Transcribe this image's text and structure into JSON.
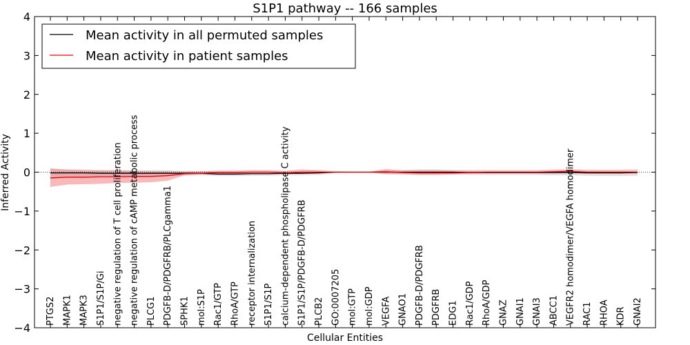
{
  "chart_data": {
    "type": "line",
    "title": "S1P1 pathway -- 166 samples",
    "xlabel": "Cellular Entities",
    "ylabel": "Inferred Activity",
    "ylim": [
      -4,
      4
    ],
    "yticks": [
      -4,
      -3,
      -2,
      -1,
      0,
      1,
      2,
      3,
      4
    ],
    "ytick_labels": [
      "−4",
      "−3",
      "−2",
      "−1",
      "0",
      "1",
      "2",
      "3",
      "4"
    ],
    "categories": [
      "PTGS2",
      "MAPK1",
      "MAPK3",
      "S1P1/S1P/Gi",
      "negative regulation of T cell proliferation",
      "negative regulation of cAMP metabolic process",
      "PLCG1",
      "PDGFB-D/PDGFRB/PLCgamma1",
      "SPHK1",
      "mol:S1P",
      "Rac1/GTP",
      "RhoA/GTP",
      "receptor internalization",
      "S1P1/S1P",
      "calcium-dependent phospholipase C activity",
      "S1P1/S1P/PDGFB-D/PDGFRB",
      "PLCB2",
      "GO:0007205",
      "mol:GTP",
      "mol:GDP",
      "VEGFA",
      "GNAO1",
      "PDGFB-D/PDGFRB",
      "PDGFRB",
      "EDG1",
      "Rac1/GDP",
      "RhoA/GDP",
      "GNAZ",
      "GNAI1",
      "GNAI3",
      "ABCC1",
      "VEGFR2 homodimer/VEGFA homodimer",
      "RAC1",
      "RHOA",
      "KDR",
      "GNAI2"
    ],
    "legend_position": "top-left",
    "series": [
      {
        "name": "Mean activity in all permuted samples",
        "color": "#000000",
        "values": [
          -0.02,
          -0.02,
          -0.02,
          -0.03,
          -0.03,
          -0.03,
          -0.03,
          -0.03,
          -0.03,
          -0.03,
          -0.05,
          -0.05,
          -0.04,
          -0.04,
          -0.03,
          -0.03,
          -0.02,
          0.0,
          0.0,
          0.0,
          0.0,
          0.0,
          0.0,
          0.0,
          0.0,
          -0.01,
          -0.01,
          -0.01,
          -0.01,
          -0.01,
          -0.01,
          -0.01,
          -0.02,
          -0.02,
          -0.02,
          -0.01
        ],
        "band_lower": [
          -0.15,
          -0.14,
          -0.13,
          -0.13,
          -0.12,
          -0.12,
          -0.11,
          -0.1,
          -0.09,
          -0.08,
          -0.1,
          -0.1,
          -0.09,
          -0.09,
          -0.08,
          -0.08,
          -0.07,
          -0.02,
          -0.01,
          -0.01,
          -0.05,
          -0.06,
          -0.07,
          -0.07,
          -0.06,
          -0.07,
          -0.07,
          -0.07,
          -0.07,
          -0.07,
          -0.08,
          -0.08,
          -0.09,
          -0.1,
          -0.1,
          -0.09
        ],
        "band_upper": [
          0.08,
          0.08,
          0.07,
          0.06,
          0.06,
          0.05,
          0.05,
          0.05,
          0.03,
          0.03,
          0.0,
          0.0,
          0.01,
          0.02,
          0.03,
          0.03,
          0.04,
          0.02,
          0.01,
          0.01,
          0.05,
          0.06,
          0.07,
          0.07,
          0.06,
          0.06,
          0.06,
          0.06,
          0.06,
          0.06,
          0.07,
          0.07,
          0.07,
          0.07,
          0.07,
          0.08
        ],
        "band_color": "#d9d9d9"
      },
      {
        "name": "Mean activity in patient samples",
        "color": "#e8000b",
        "values": [
          -0.15,
          -0.13,
          -0.13,
          -0.12,
          -0.12,
          -0.11,
          -0.11,
          -0.09,
          -0.04,
          -0.03,
          -0.01,
          -0.01,
          0.0,
          0.0,
          -0.02,
          0.0,
          0.0,
          0.0,
          0.0,
          0.0,
          0.01,
          -0.01,
          -0.02,
          -0.02,
          -0.02,
          -0.01,
          0.0,
          0.0,
          0.0,
          0.0,
          0.01,
          0.02,
          0.0,
          0.0,
          0.0,
          0.0
        ],
        "band_lower": [
          -0.38,
          -0.32,
          -0.31,
          -0.3,
          -0.28,
          -0.27,
          -0.26,
          -0.22,
          -0.08,
          -0.06,
          -0.05,
          -0.04,
          -0.03,
          -0.03,
          -0.05,
          -0.04,
          -0.03,
          -0.01,
          -0.01,
          -0.01,
          -0.05,
          -0.05,
          -0.07,
          -0.07,
          -0.06,
          -0.04,
          -0.03,
          -0.03,
          -0.03,
          -0.03,
          -0.03,
          -0.02,
          -0.03,
          -0.03,
          -0.03,
          -0.03
        ],
        "band_upper": [
          0.1,
          0.06,
          0.05,
          0.04,
          0.04,
          0.03,
          0.02,
          0.02,
          0.01,
          0.02,
          0.04,
          0.04,
          0.05,
          0.05,
          0.03,
          0.07,
          0.05,
          0.02,
          0.01,
          0.01,
          0.08,
          0.04,
          0.05,
          0.05,
          0.04,
          0.03,
          0.03,
          0.03,
          0.03,
          0.03,
          0.05,
          0.07,
          0.04,
          0.04,
          0.04,
          0.04
        ],
        "band_color": "#f08080"
      }
    ],
    "reference_line": {
      "y": 0,
      "style": "dotted"
    }
  }
}
